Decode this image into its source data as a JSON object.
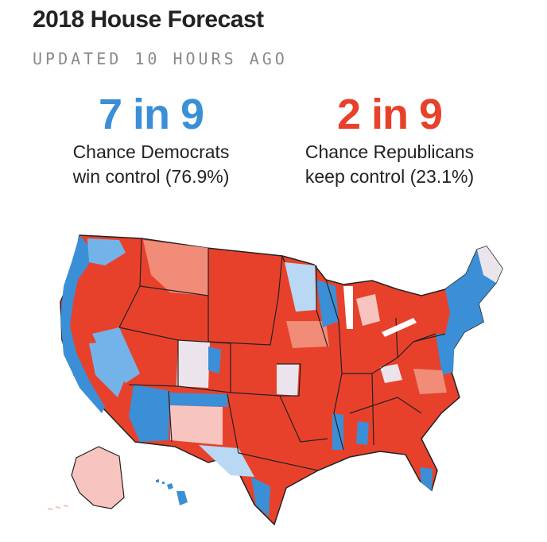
{
  "header": {
    "title": "2018 House Forecast",
    "updated": "UPDATED 10 HOURS AGO"
  },
  "democrats": {
    "odds": "7 in 9",
    "line1": "Chance Democrats",
    "line2": "win control (76.9%)"
  },
  "republicans": {
    "odds": "2 in 9",
    "line1": "Chance Republicans",
    "line2": "keep control (23.1%)"
  },
  "colors": {
    "solid_d": "#3b8fd6",
    "likely_d": "#74b3ea",
    "lean_d": "#b8d8f4",
    "tossup": "#ece4ec",
    "lean_r": "#f7c4bf",
    "likely_r": "#f08c78",
    "solid_r": "#e8412b",
    "state_border": "#222222"
  }
}
